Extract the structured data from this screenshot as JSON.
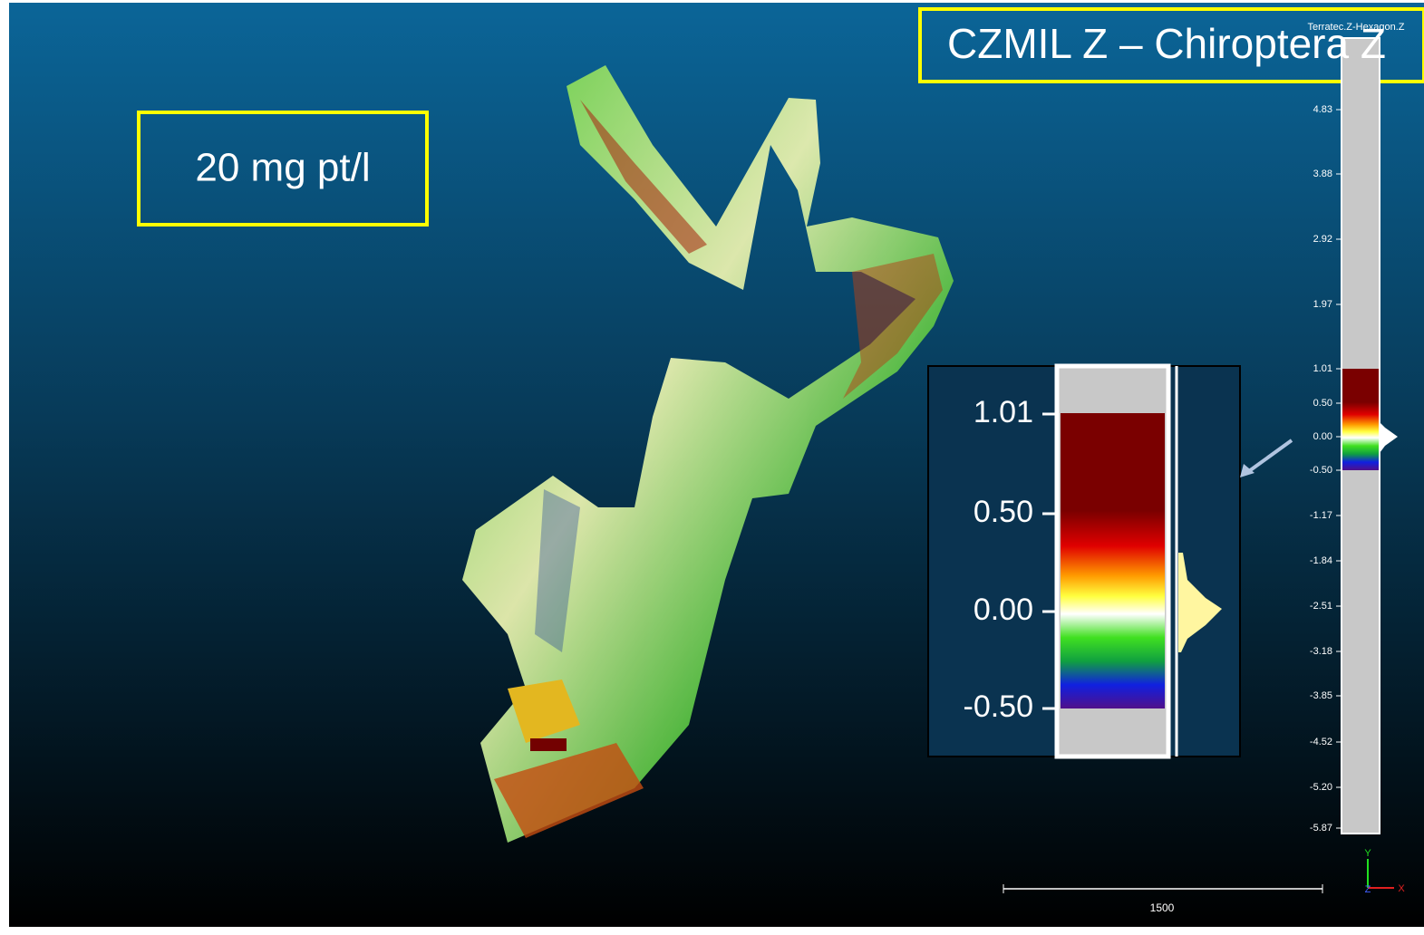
{
  "labels": {
    "concentration": "20 mg pt/l",
    "comparison": "CZMIL Z – Chiroptera Z",
    "scalar_field": "Terratec.Z-Hexagon.Z"
  },
  "color_scale": {
    "ticks": [
      "4.83",
      "3.88",
      "2.92",
      "1.97",
      "1.01",
      "0.50",
      "0.00",
      "-0.50",
      "-1.17",
      "-1.84",
      "-2.51",
      "-3.18",
      "-3.85",
      "-4.52",
      "-5.20",
      "-5.87"
    ]
  },
  "inset": {
    "ticks": [
      "1.01",
      "0.50",
      "0.00",
      "-0.50"
    ]
  },
  "scale_bar": {
    "label": "1500"
  },
  "axes": {
    "y": "Y",
    "z": "Z",
    "x": "X"
  }
}
